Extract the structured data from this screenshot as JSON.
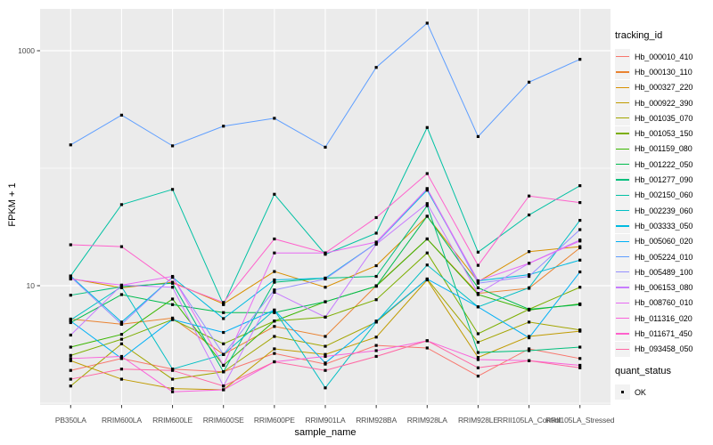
{
  "figure": {
    "background": "#FFFFFF",
    "panel_background": "#EBEBEB",
    "gridline_color": "#FFFFFF",
    "tick_mark_color": "#333333",
    "tick_label_color": "#4D4D4D",
    "axis_title_color": "#000000",
    "legend_key_background": "#F2F2F2"
  },
  "chart_data": {
    "type": "line",
    "title": "",
    "xlabel": "sample_name",
    "ylabel": "FPKM + 1",
    "y_scale": "log10",
    "ylim": [
      0.98,
      2270
    ],
    "y_major_breaks": [
      10,
      1000
    ],
    "y_minor_breaks": [
      1,
      100
    ],
    "grid": true,
    "point_color": "#000000",
    "legend_position": "right",
    "legend_title": "tracking_id",
    "quant_legend": {
      "title": "quant_status",
      "items": [
        "OK"
      ]
    },
    "categories": [
      "PB350LA",
      "RRIM600LA",
      "RRIM600LE",
      "RRIM600SE",
      "RRIM600PE",
      "RRIM901LA",
      "RRIM928BA",
      "RRIM928LA",
      "RRIM928LE",
      "RRII105LA_Control",
      "RRII105LA_Stressed"
    ],
    "series": [
      {
        "name": "Hb_000010_410",
        "color": "#F8766D",
        "values": [
          1.9,
          2.4,
          1.95,
          1.85,
          2.65,
          2.15,
          3.1,
          2.95,
          1.7,
          2.9,
          2.4
        ]
      },
      {
        "name": "Hb_000130_110",
        "color": "#EA8331",
        "values": [
          5.2,
          4.7,
          5.3,
          2.6,
          4.5,
          3.7,
          10.0,
          25,
          8.6,
          9.5,
          21
        ]
      },
      {
        "name": "Hb_000327_220",
        "color": "#D89000",
        "values": [
          11.5,
          9.6,
          10.7,
          7.0,
          13.2,
          9.7,
          14.8,
          39,
          10.8,
          19.5,
          21.5
        ]
      },
      {
        "name": "Hb_000922_390",
        "color": "#C09B00",
        "values": [
          2.3,
          1.6,
          1.33,
          1.3,
          2.9,
          2.6,
          3.65,
          11.2,
          2.45,
          3.7,
          4.1
        ]
      },
      {
        "name": "Hb_001035_070",
        "color": "#A3A500",
        "values": [
          1.4,
          3.2,
          1.6,
          1.85,
          3.7,
          3.05,
          4.9,
          11.4,
          3.3,
          4.9,
          4.2
        ]
      },
      {
        "name": "Hb_001053_150",
        "color": "#7CAE00",
        "values": [
          2.55,
          3.5,
          5.15,
          3.2,
          5.0,
          5.4,
          7.6,
          19,
          3.9,
          6.3,
          9.7
        ]
      },
      {
        "name": "Hb_001159_080",
        "color": "#39B600",
        "values": [
          3.0,
          3.85,
          7.7,
          2.1,
          5.0,
          7.3,
          9.9,
          25,
          8.4,
          6.2,
          7.0
        ]
      },
      {
        "name": "Hb_001222_050",
        "color": "#00BB4E",
        "values": [
          4.85,
          8.4,
          6.9,
          5.9,
          5.9,
          7.3,
          9.9,
          39,
          9.6,
          6.3,
          6.9
        ]
      },
      {
        "name": "Hb_001277_090",
        "color": "#00BF7D",
        "values": [
          8.3,
          9.8,
          10.5,
          1.85,
          10.7,
          11.6,
          12.0,
          48,
          2.7,
          2.8,
          3.0
        ]
      },
      {
        "name": "Hb_002150_060",
        "color": "#00C1A3",
        "values": [
          12.1,
          49,
          66,
          6.9,
          60,
          18.5,
          28,
          222,
          19.3,
          40,
          71
        ]
      },
      {
        "name": "Hb_002239_060",
        "color": "#00BFC4",
        "values": [
          5.1,
          9.8,
          1.95,
          2.6,
          6.2,
          1.35,
          4.9,
          15,
          6.6,
          9.6,
          36
        ]
      },
      {
        "name": "Hb_003333_050",
        "color": "#00BAE0",
        "values": [
          12.1,
          4.9,
          11.8,
          5.25,
          11.2,
          11.6,
          23,
          65,
          11.0,
          12.4,
          16.5
        ]
      },
      {
        "name": "Hb_005060_020",
        "color": "#00B0F6",
        "values": [
          5.0,
          2.4,
          5.15,
          4.0,
          6.2,
          2.2,
          5.0,
          11.4,
          6.6,
          3.6,
          13.1
        ]
      },
      {
        "name": "Hb_005224_010",
        "color": "#5E9EFF",
        "values": [
          158,
          283,
          155,
          228,
          266,
          151,
          721,
          1717,
          186,
          540,
          845
        ]
      },
      {
        "name": "Hb_005489_100",
        "color": "#9590FF",
        "values": [
          11.9,
          4.7,
          11.8,
          2.6,
          9.2,
          11.4,
          23,
          67,
          10.5,
          12.0,
          30
        ]
      },
      {
        "name": "Hb_006153_080",
        "color": "#C77CFF",
        "values": [
          3.8,
          10.1,
          9.7,
          1.4,
          8.8,
          5.4,
          22.5,
          50,
          8.6,
          15.5,
          24.5
        ]
      },
      {
        "name": "Hb_008760_010",
        "color": "#E76BF3",
        "values": [
          11.4,
          10.1,
          12.0,
          2.1,
          19.0,
          19.0,
          23.5,
          67,
          11.0,
          15.5,
          24.0
        ]
      },
      {
        "name": "Hb_011316_020",
        "color": "#FA62DB",
        "values": [
          2.4,
          2.5,
          1.25,
          1.3,
          2.25,
          2.5,
          2.8,
          3.4,
          2.35,
          2.3,
          2.1
        ]
      },
      {
        "name": "Hb_011671_450",
        "color": "#FF61CC",
        "values": [
          22.3,
          21.5,
          10.5,
          7.2,
          25,
          19,
          38,
          90,
          14.9,
          58,
          51
        ]
      },
      {
        "name": "Hb_093458_050",
        "color": "#FF67A4",
        "values": [
          1.6,
          1.95,
          1.9,
          1.4,
          2.25,
          1.9,
          2.5,
          3.4,
          2.0,
          2.3,
          2.0
        ]
      }
    ]
  }
}
